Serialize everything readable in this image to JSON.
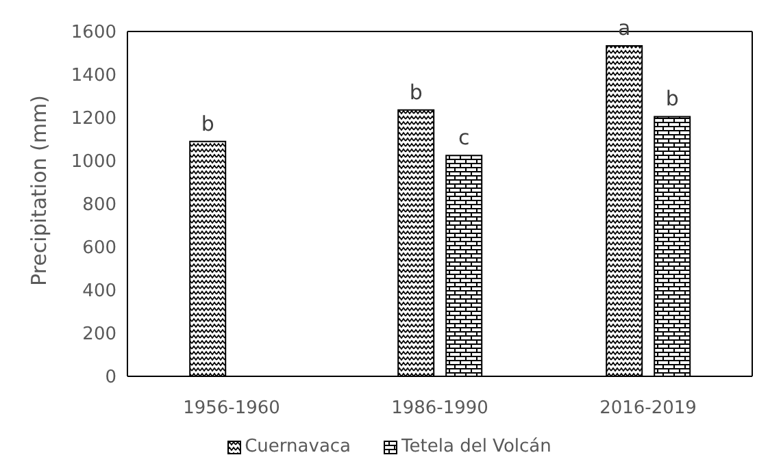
{
  "chart_data": {
    "type": "bar",
    "ylabel": "Precipitation (mm)",
    "categories": [
      "1956-1960",
      "1986-1990",
      "2016-2019"
    ],
    "series": [
      {
        "name": "Cuernavaca",
        "color": "#000000",
        "values": [
          1090,
          1236,
          1533
        ]
      },
      {
        "name": "Tetela del Volcán",
        "color": "#000000",
        "values": [
          null,
          1025,
          1205
        ]
      }
    ],
    "ylim": [
      0,
      1600
    ],
    "yticks": [
      0,
      200,
      400,
      600,
      800,
      1000,
      1200,
      1400,
      1600
    ],
    "grid": false,
    "legend": "bottom",
    "annotations": [
      {
        "text": "b",
        "x": "1956-1960",
        "y": 1090
      },
      {
        "text": "b",
        "x": "1986-1990",
        "y": 1236
      },
      {
        "text": "c",
        "x": "1986-1990",
        "y": 1025
      },
      {
        "text": "a",
        "x": "2016-2019",
        "y": 1533
      },
      {
        "text": "b",
        "x": "2016-2019",
        "y": 1205
      }
    ]
  }
}
